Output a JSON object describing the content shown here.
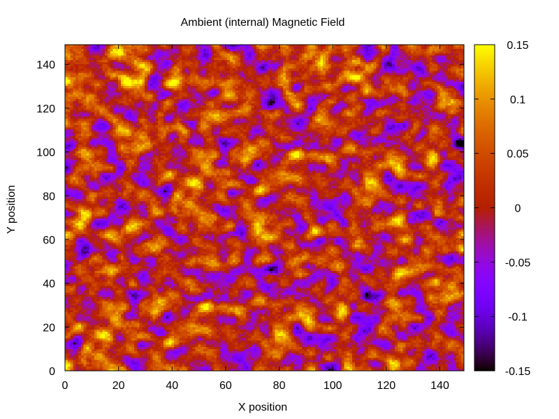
{
  "chart_data": {
    "type": "heatmap",
    "title": "Ambient (internal) Magnetic Field",
    "xlabel": "X position",
    "ylabel": "Y position",
    "xlim": [
      0,
      149
    ],
    "ylim": [
      0,
      149
    ],
    "x_ticks": [
      0,
      20,
      40,
      60,
      80,
      100,
      120,
      140
    ],
    "y_ticks": [
      0,
      20,
      40,
      60,
      80,
      100,
      120,
      140
    ],
    "colorbar": {
      "range": [
        -0.15,
        0.15
      ],
      "ticks": [
        0.15,
        0.1,
        0.05,
        0,
        -0.05,
        -0.1,
        -0.15
      ],
      "tick_labels": [
        "0.15",
        "0.1",
        "0.05",
        "0",
        "-0.05",
        "-0.1",
        "-0.15"
      ],
      "palette": "gnuplot default (black-purple-red-orange-yellow)"
    },
    "grid_size": [
      150,
      150
    ],
    "value_distribution": "spatially correlated random field, mostly between -0.1 and 0.12"
  }
}
